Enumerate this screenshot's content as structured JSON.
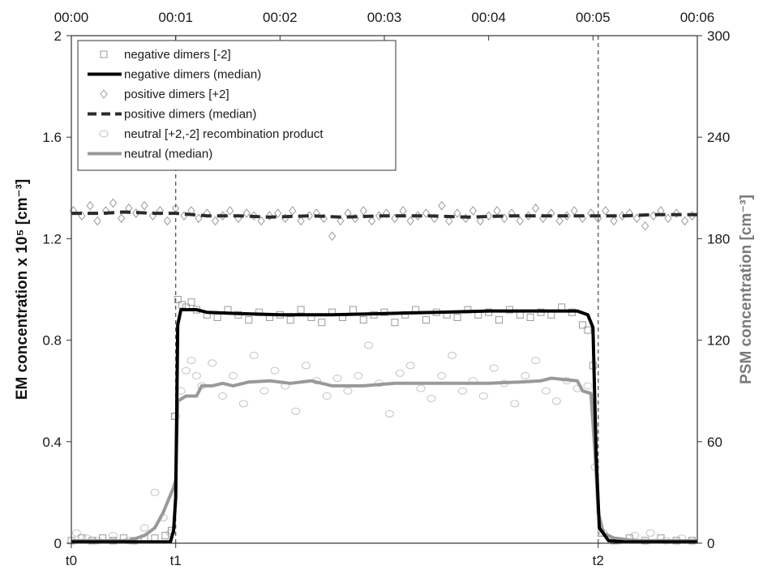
{
  "chart_data": {
    "type": "line",
    "x_unit": "minutes since t0",
    "xlim": [
      0,
      6
    ],
    "x_top_ticks": [
      "00:00",
      "00:01",
      "00:02",
      "00:03",
      "00:04",
      "00:05",
      "00:06"
    ],
    "x_bottom_markers": [
      {
        "label": "t0",
        "x": 0.0
      },
      {
        "label": "t1",
        "x": 1.0
      },
      {
        "label": "t2",
        "x": 5.05
      }
    ],
    "ylabel_left": "EM concentration x 10⁵ [cm⁻³]",
    "ylabel_right": "PSM concentration [cm⁻³]",
    "ylim_left": [
      0,
      2
    ],
    "ylim_right": [
      0,
      300
    ],
    "y_left_ticks": [
      "0",
      "0.4",
      "0.8",
      "1.2",
      "1.6",
      "2"
    ],
    "y_right_ticks": [
      "0",
      "60",
      "120",
      "180",
      "240",
      "300"
    ],
    "grid": false,
    "legend_position": "top-left",
    "series": [
      {
        "name": "negative dimers [-2]",
        "style": "open-square-markers",
        "color": "#9a9a9a",
        "axis": "left",
        "points": [
          [
            0.0,
            0.01
          ],
          [
            0.1,
            0.02
          ],
          [
            0.2,
            0.01
          ],
          [
            0.3,
            0.02
          ],
          [
            0.4,
            0.01
          ],
          [
            0.5,
            0.02
          ],
          [
            0.6,
            0.01
          ],
          [
            0.7,
            0.02
          ],
          [
            0.8,
            0.02
          ],
          [
            0.9,
            0.03
          ],
          [
            0.96,
            0.05
          ],
          [
            0.99,
            0.5
          ],
          [
            1.02,
            0.96
          ],
          [
            1.06,
            0.94
          ],
          [
            1.1,
            0.93
          ],
          [
            1.15,
            0.95
          ],
          [
            1.2,
            0.92
          ],
          [
            1.3,
            0.9
          ],
          [
            1.4,
            0.89
          ],
          [
            1.5,
            0.92
          ],
          [
            1.6,
            0.9
          ],
          [
            1.7,
            0.88
          ],
          [
            1.8,
            0.91
          ],
          [
            1.9,
            0.89
          ],
          [
            2.0,
            0.9
          ],
          [
            2.1,
            0.88
          ],
          [
            2.2,
            0.92
          ],
          [
            2.3,
            0.89
          ],
          [
            2.4,
            0.87
          ],
          [
            2.5,
            0.91
          ],
          [
            2.6,
            0.89
          ],
          [
            2.7,
            0.92
          ],
          [
            2.8,
            0.88
          ],
          [
            2.9,
            0.9
          ],
          [
            3.0,
            0.91
          ],
          [
            3.1,
            0.87
          ],
          [
            3.2,
            0.9
          ],
          [
            3.3,
            0.92
          ],
          [
            3.4,
            0.88
          ],
          [
            3.5,
            0.91
          ],
          [
            3.6,
            0.9
          ],
          [
            3.7,
            0.89
          ],
          [
            3.8,
            0.92
          ],
          [
            3.9,
            0.9
          ],
          [
            4.0,
            0.91
          ],
          [
            4.1,
            0.88
          ],
          [
            4.2,
            0.92
          ],
          [
            4.3,
            0.9
          ],
          [
            4.4,
            0.89
          ],
          [
            4.5,
            0.91
          ],
          [
            4.6,
            0.9
          ],
          [
            4.7,
            0.93
          ],
          [
            4.8,
            0.91
          ],
          [
            4.9,
            0.86
          ],
          [
            4.95,
            0.84
          ],
          [
            5.0,
            0.7
          ],
          [
            5.08,
            0.04
          ],
          [
            5.2,
            0.01
          ],
          [
            5.35,
            0.02
          ],
          [
            5.5,
            0.01
          ],
          [
            5.65,
            0.02
          ],
          [
            5.8,
            0.01
          ],
          [
            5.95,
            0.01
          ]
        ]
      },
      {
        "name": "negative dimers (median)",
        "style": "solid-line-thick",
        "color": "#000000",
        "axis": "left",
        "points": [
          [
            0.0,
            0.005
          ],
          [
            0.95,
            0.005
          ],
          [
            0.98,
            0.05
          ],
          [
            1.0,
            0.18
          ],
          [
            1.02,
            0.86
          ],
          [
            1.05,
            0.92
          ],
          [
            1.2,
            0.92
          ],
          [
            1.3,
            0.91
          ],
          [
            1.6,
            0.905
          ],
          [
            2.0,
            0.9
          ],
          [
            2.5,
            0.9
          ],
          [
            3.0,
            0.905
          ],
          [
            3.5,
            0.91
          ],
          [
            4.0,
            0.915
          ],
          [
            4.5,
            0.915
          ],
          [
            4.85,
            0.915
          ],
          [
            4.95,
            0.9
          ],
          [
            5.0,
            0.85
          ],
          [
            5.03,
            0.35
          ],
          [
            5.06,
            0.06
          ],
          [
            5.15,
            0.01
          ],
          [
            5.3,
            0.005
          ],
          [
            6.0,
            0.005
          ]
        ]
      },
      {
        "name": "positive dimers [+2]",
        "style": "open-diamond-markers",
        "color": "#9a9a9a",
        "axis": "left",
        "points": [
          [
            0.02,
            1.31
          ],
          [
            0.1,
            1.29
          ],
          [
            0.18,
            1.33
          ],
          [
            0.25,
            1.27
          ],
          [
            0.33,
            1.31
          ],
          [
            0.4,
            1.34
          ],
          [
            0.48,
            1.28
          ],
          [
            0.55,
            1.32
          ],
          [
            0.62,
            1.3
          ],
          [
            0.7,
            1.33
          ],
          [
            0.78,
            1.29
          ],
          [
            0.85,
            1.31
          ],
          [
            0.92,
            1.27
          ],
          [
            1.0,
            1.32
          ],
          [
            1.08,
            1.29
          ],
          [
            1.15,
            1.31
          ],
          [
            1.22,
            1.28
          ],
          [
            1.3,
            1.3
          ],
          [
            1.38,
            1.27
          ],
          [
            1.45,
            1.29
          ],
          [
            1.52,
            1.31
          ],
          [
            1.6,
            1.28
          ],
          [
            1.68,
            1.3
          ],
          [
            1.75,
            1.29
          ],
          [
            1.82,
            1.27
          ],
          [
            1.9,
            1.29
          ],
          [
            1.98,
            1.3
          ],
          [
            2.05,
            1.28
          ],
          [
            2.12,
            1.31
          ],
          [
            2.2,
            1.27
          ],
          [
            2.28,
            1.29
          ],
          [
            2.35,
            1.3
          ],
          [
            2.42,
            1.28
          ],
          [
            2.5,
            1.21
          ],
          [
            2.58,
            1.27
          ],
          [
            2.65,
            1.3
          ],
          [
            2.72,
            1.28
          ],
          [
            2.8,
            1.31
          ],
          [
            2.88,
            1.27
          ],
          [
            2.95,
            1.29
          ],
          [
            3.02,
            1.3
          ],
          [
            3.1,
            1.28
          ],
          [
            3.18,
            1.31
          ],
          [
            3.25,
            1.27
          ],
          [
            3.32,
            1.29
          ],
          [
            3.4,
            1.3
          ],
          [
            3.48,
            1.28
          ],
          [
            3.55,
            1.33
          ],
          [
            3.62,
            1.27
          ],
          [
            3.7,
            1.3
          ],
          [
            3.78,
            1.28
          ],
          [
            3.85,
            1.31
          ],
          [
            3.92,
            1.27
          ],
          [
            4.0,
            1.29
          ],
          [
            4.08,
            1.31
          ],
          [
            4.15,
            1.28
          ],
          [
            4.22,
            1.3
          ],
          [
            4.3,
            1.27
          ],
          [
            4.38,
            1.29
          ],
          [
            4.45,
            1.32
          ],
          [
            4.52,
            1.28
          ],
          [
            4.6,
            1.3
          ],
          [
            4.68,
            1.27
          ],
          [
            4.75,
            1.29
          ],
          [
            4.82,
            1.31
          ],
          [
            4.9,
            1.28
          ],
          [
            4.98,
            1.3
          ],
          [
            5.05,
            1.28
          ],
          [
            5.12,
            1.31
          ],
          [
            5.2,
            1.27
          ],
          [
            5.28,
            1.29
          ],
          [
            5.35,
            1.3
          ],
          [
            5.42,
            1.28
          ],
          [
            5.5,
            1.25
          ],
          [
            5.58,
            1.29
          ],
          [
            5.65,
            1.31
          ],
          [
            5.72,
            1.28
          ],
          [
            5.8,
            1.3
          ],
          [
            5.88,
            1.27
          ],
          [
            5.95,
            1.29
          ]
        ]
      },
      {
        "name": "positive dimers (median)",
        "style": "dashed-line-thick",
        "color": "#2b2b2b",
        "axis": "left",
        "points": [
          [
            0.0,
            1.3
          ],
          [
            0.3,
            1.3
          ],
          [
            0.5,
            1.305
          ],
          [
            0.8,
            1.3
          ],
          [
            1.0,
            1.3
          ],
          [
            1.3,
            1.29
          ],
          [
            1.6,
            1.29
          ],
          [
            1.9,
            1.285
          ],
          [
            2.3,
            1.29
          ],
          [
            2.6,
            1.285
          ],
          [
            3.0,
            1.29
          ],
          [
            3.4,
            1.29
          ],
          [
            3.8,
            1.285
          ],
          [
            4.2,
            1.29
          ],
          [
            4.6,
            1.29
          ],
          [
            5.0,
            1.29
          ],
          [
            5.3,
            1.29
          ],
          [
            5.6,
            1.295
          ],
          [
            6.0,
            1.295
          ]
        ]
      },
      {
        "name": "neutral [+2,-2] recombination product",
        "style": "open-circle-markers",
        "color": "#c4c4c4",
        "axis": "left",
        "points": [
          [
            0.05,
            0.04
          ],
          [
            0.15,
            0.02
          ],
          [
            0.25,
            0.01
          ],
          [
            0.4,
            0.03
          ],
          [
            0.55,
            0.01
          ],
          [
            0.7,
            0.06
          ],
          [
            0.8,
            0.2
          ],
          [
            0.88,
            0.1
          ],
          [
            0.95,
            0.04
          ],
          [
            1.0,
            0.5
          ],
          [
            1.05,
            0.6
          ],
          [
            1.1,
            0.68
          ],
          [
            1.15,
            0.72
          ],
          [
            1.2,
            0.66
          ],
          [
            1.25,
            0.62
          ],
          [
            1.35,
            0.71
          ],
          [
            1.45,
            0.58
          ],
          [
            1.55,
            0.66
          ],
          [
            1.65,
            0.55
          ],
          [
            1.75,
            0.74
          ],
          [
            1.85,
            0.6
          ],
          [
            1.95,
            0.68
          ],
          [
            2.05,
            0.62
          ],
          [
            2.15,
            0.52
          ],
          [
            2.25,
            0.7
          ],
          [
            2.35,
            0.64
          ],
          [
            2.45,
            0.58
          ],
          [
            2.55,
            0.65
          ],
          [
            2.65,
            0.6
          ],
          [
            2.75,
            0.66
          ],
          [
            2.85,
            0.78
          ],
          [
            2.95,
            0.63
          ],
          [
            3.05,
            0.51
          ],
          [
            3.15,
            0.67
          ],
          [
            3.25,
            0.7
          ],
          [
            3.35,
            0.61
          ],
          [
            3.45,
            0.57
          ],
          [
            3.55,
            0.66
          ],
          [
            3.65,
            0.74
          ],
          [
            3.75,
            0.6
          ],
          [
            3.85,
            0.64
          ],
          [
            3.95,
            0.58
          ],
          [
            4.05,
            0.69
          ],
          [
            4.15,
            0.63
          ],
          [
            4.25,
            0.55
          ],
          [
            4.35,
            0.66
          ],
          [
            4.45,
            0.72
          ],
          [
            4.55,
            0.6
          ],
          [
            4.65,
            0.56
          ],
          [
            4.75,
            0.64
          ],
          [
            4.85,
            0.61
          ],
          [
            4.95,
            0.62
          ],
          [
            5.02,
            0.3
          ],
          [
            5.1,
            0.04
          ],
          [
            5.25,
            0.01
          ],
          [
            5.4,
            0.03
          ],
          [
            5.55,
            0.04
          ],
          [
            5.7,
            0.01
          ],
          [
            5.85,
            0.02
          ],
          [
            5.95,
            0.01
          ]
        ]
      },
      {
        "name": "neutral (median)",
        "style": "solid-line-thick",
        "color": "#999999",
        "axis": "left",
        "points": [
          [
            0.0,
            0.01
          ],
          [
            0.55,
            0.01
          ],
          [
            0.7,
            0.03
          ],
          [
            0.8,
            0.06
          ],
          [
            0.88,
            0.12
          ],
          [
            0.95,
            0.19
          ],
          [
            0.98,
            0.22
          ],
          [
            1.0,
            0.25
          ],
          [
            1.02,
            0.56
          ],
          [
            1.1,
            0.58
          ],
          [
            1.2,
            0.58
          ],
          [
            1.25,
            0.62
          ],
          [
            1.35,
            0.62
          ],
          [
            1.45,
            0.63
          ],
          [
            1.55,
            0.62
          ],
          [
            1.7,
            0.635
          ],
          [
            1.9,
            0.64
          ],
          [
            2.1,
            0.63
          ],
          [
            2.3,
            0.64
          ],
          [
            2.5,
            0.62
          ],
          [
            2.8,
            0.62
          ],
          [
            3.1,
            0.63
          ],
          [
            3.4,
            0.63
          ],
          [
            3.7,
            0.63
          ],
          [
            4.0,
            0.63
          ],
          [
            4.3,
            0.635
          ],
          [
            4.5,
            0.64
          ],
          [
            4.6,
            0.65
          ],
          [
            4.85,
            0.64
          ],
          [
            4.9,
            0.6
          ],
          [
            4.98,
            0.59
          ],
          [
            5.02,
            0.35
          ],
          [
            5.05,
            0.12
          ],
          [
            5.1,
            0.04
          ],
          [
            5.2,
            0.02
          ],
          [
            5.4,
            0.01
          ],
          [
            6.0,
            0.01
          ]
        ]
      }
    ]
  }
}
